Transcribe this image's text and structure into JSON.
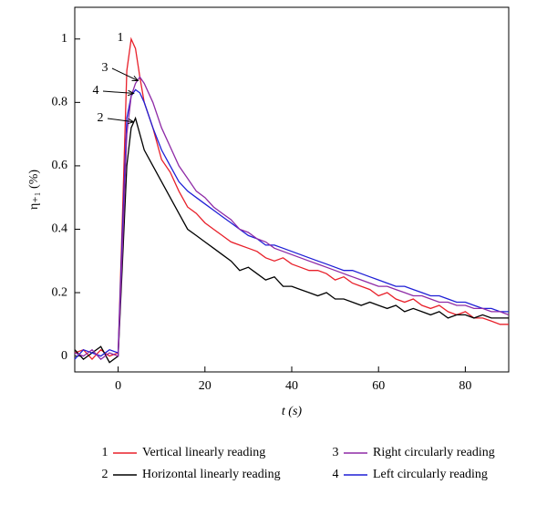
{
  "chart_data": {
    "type": "line",
    "x_label": "t (s)",
    "y_label": "η₊₁ (%)",
    "x": [
      -10,
      -8,
      -6,
      -4,
      -2,
      0,
      1,
      2,
      3,
      4,
      5,
      6,
      8,
      10,
      12,
      14,
      16,
      18,
      20,
      22,
      24,
      26,
      28,
      30,
      32,
      34,
      36,
      38,
      40,
      42,
      44,
      46,
      48,
      50,
      52,
      54,
      56,
      58,
      60,
      62,
      64,
      66,
      68,
      70,
      72,
      74,
      76,
      78,
      80,
      82,
      84,
      86,
      88,
      90
    ],
    "series": [
      {
        "name": "Vertical linearly reading",
        "color": "#e8202a",
        "values": [
          0.01,
          0.02,
          -0.01,
          0.02,
          0.0,
          0.01,
          0.45,
          0.9,
          1.0,
          0.97,
          0.88,
          0.8,
          0.72,
          0.62,
          0.58,
          0.52,
          0.47,
          0.45,
          0.42,
          0.4,
          0.38,
          0.36,
          0.35,
          0.34,
          0.33,
          0.31,
          0.3,
          0.31,
          0.29,
          0.28,
          0.27,
          0.27,
          0.26,
          0.24,
          0.25,
          0.23,
          0.22,
          0.21,
          0.19,
          0.2,
          0.18,
          0.17,
          0.18,
          0.16,
          0.15,
          0.16,
          0.14,
          0.13,
          0.14,
          0.12,
          0.12,
          0.11,
          0.1,
          0.1
        ]
      },
      {
        "name": "Horizontal linearly reading",
        "color": "#000000",
        "values": [
          0.02,
          -0.01,
          0.01,
          0.03,
          -0.02,
          0.0,
          0.3,
          0.6,
          0.72,
          0.75,
          0.7,
          0.65,
          0.6,
          0.55,
          0.5,
          0.45,
          0.4,
          0.38,
          0.36,
          0.34,
          0.32,
          0.3,
          0.27,
          0.28,
          0.26,
          0.24,
          0.25,
          0.22,
          0.22,
          0.21,
          0.2,
          0.19,
          0.2,
          0.18,
          0.18,
          0.17,
          0.16,
          0.17,
          0.16,
          0.15,
          0.16,
          0.14,
          0.15,
          0.14,
          0.13,
          0.14,
          0.12,
          0.13,
          0.13,
          0.12,
          0.13,
          0.12,
          0.12,
          0.12
        ]
      },
      {
        "name": "Right circularly reading",
        "color": "#8e2aa6",
        "values": [
          0.01,
          0.0,
          0.02,
          -0.01,
          0.01,
          0.0,
          0.35,
          0.7,
          0.82,
          0.86,
          0.88,
          0.86,
          0.8,
          0.72,
          0.66,
          0.6,
          0.56,
          0.52,
          0.5,
          0.47,
          0.45,
          0.43,
          0.4,
          0.39,
          0.37,
          0.36,
          0.34,
          0.33,
          0.32,
          0.31,
          0.3,
          0.29,
          0.28,
          0.27,
          0.26,
          0.25,
          0.24,
          0.23,
          0.22,
          0.22,
          0.21,
          0.2,
          0.19,
          0.19,
          0.18,
          0.17,
          0.17,
          0.16,
          0.16,
          0.15,
          0.15,
          0.14,
          0.14,
          0.13
        ]
      },
      {
        "name": "Left circularly reading",
        "color": "#1f1fd6",
        "values": [
          -0.01,
          0.02,
          0.01,
          0.0,
          0.02,
          0.01,
          0.4,
          0.75,
          0.82,
          0.84,
          0.83,
          0.8,
          0.72,
          0.65,
          0.6,
          0.55,
          0.52,
          0.5,
          0.48,
          0.46,
          0.44,
          0.42,
          0.4,
          0.38,
          0.37,
          0.35,
          0.35,
          0.34,
          0.33,
          0.32,
          0.31,
          0.3,
          0.29,
          0.28,
          0.27,
          0.27,
          0.26,
          0.25,
          0.24,
          0.23,
          0.22,
          0.22,
          0.21,
          0.2,
          0.19,
          0.19,
          0.18,
          0.17,
          0.17,
          0.16,
          0.15,
          0.15,
          0.14,
          0.14
        ]
      }
    ],
    "annotations": [
      "1",
      "2",
      "3",
      "4"
    ],
    "xlim": [
      -10,
      90
    ],
    "xticks": [
      0,
      20,
      40,
      60,
      80
    ],
    "ylim": [
      -0.05,
      1.1
    ],
    "yticks": [
      0,
      0.2,
      0.4,
      0.6,
      0.8,
      1
    ]
  }
}
